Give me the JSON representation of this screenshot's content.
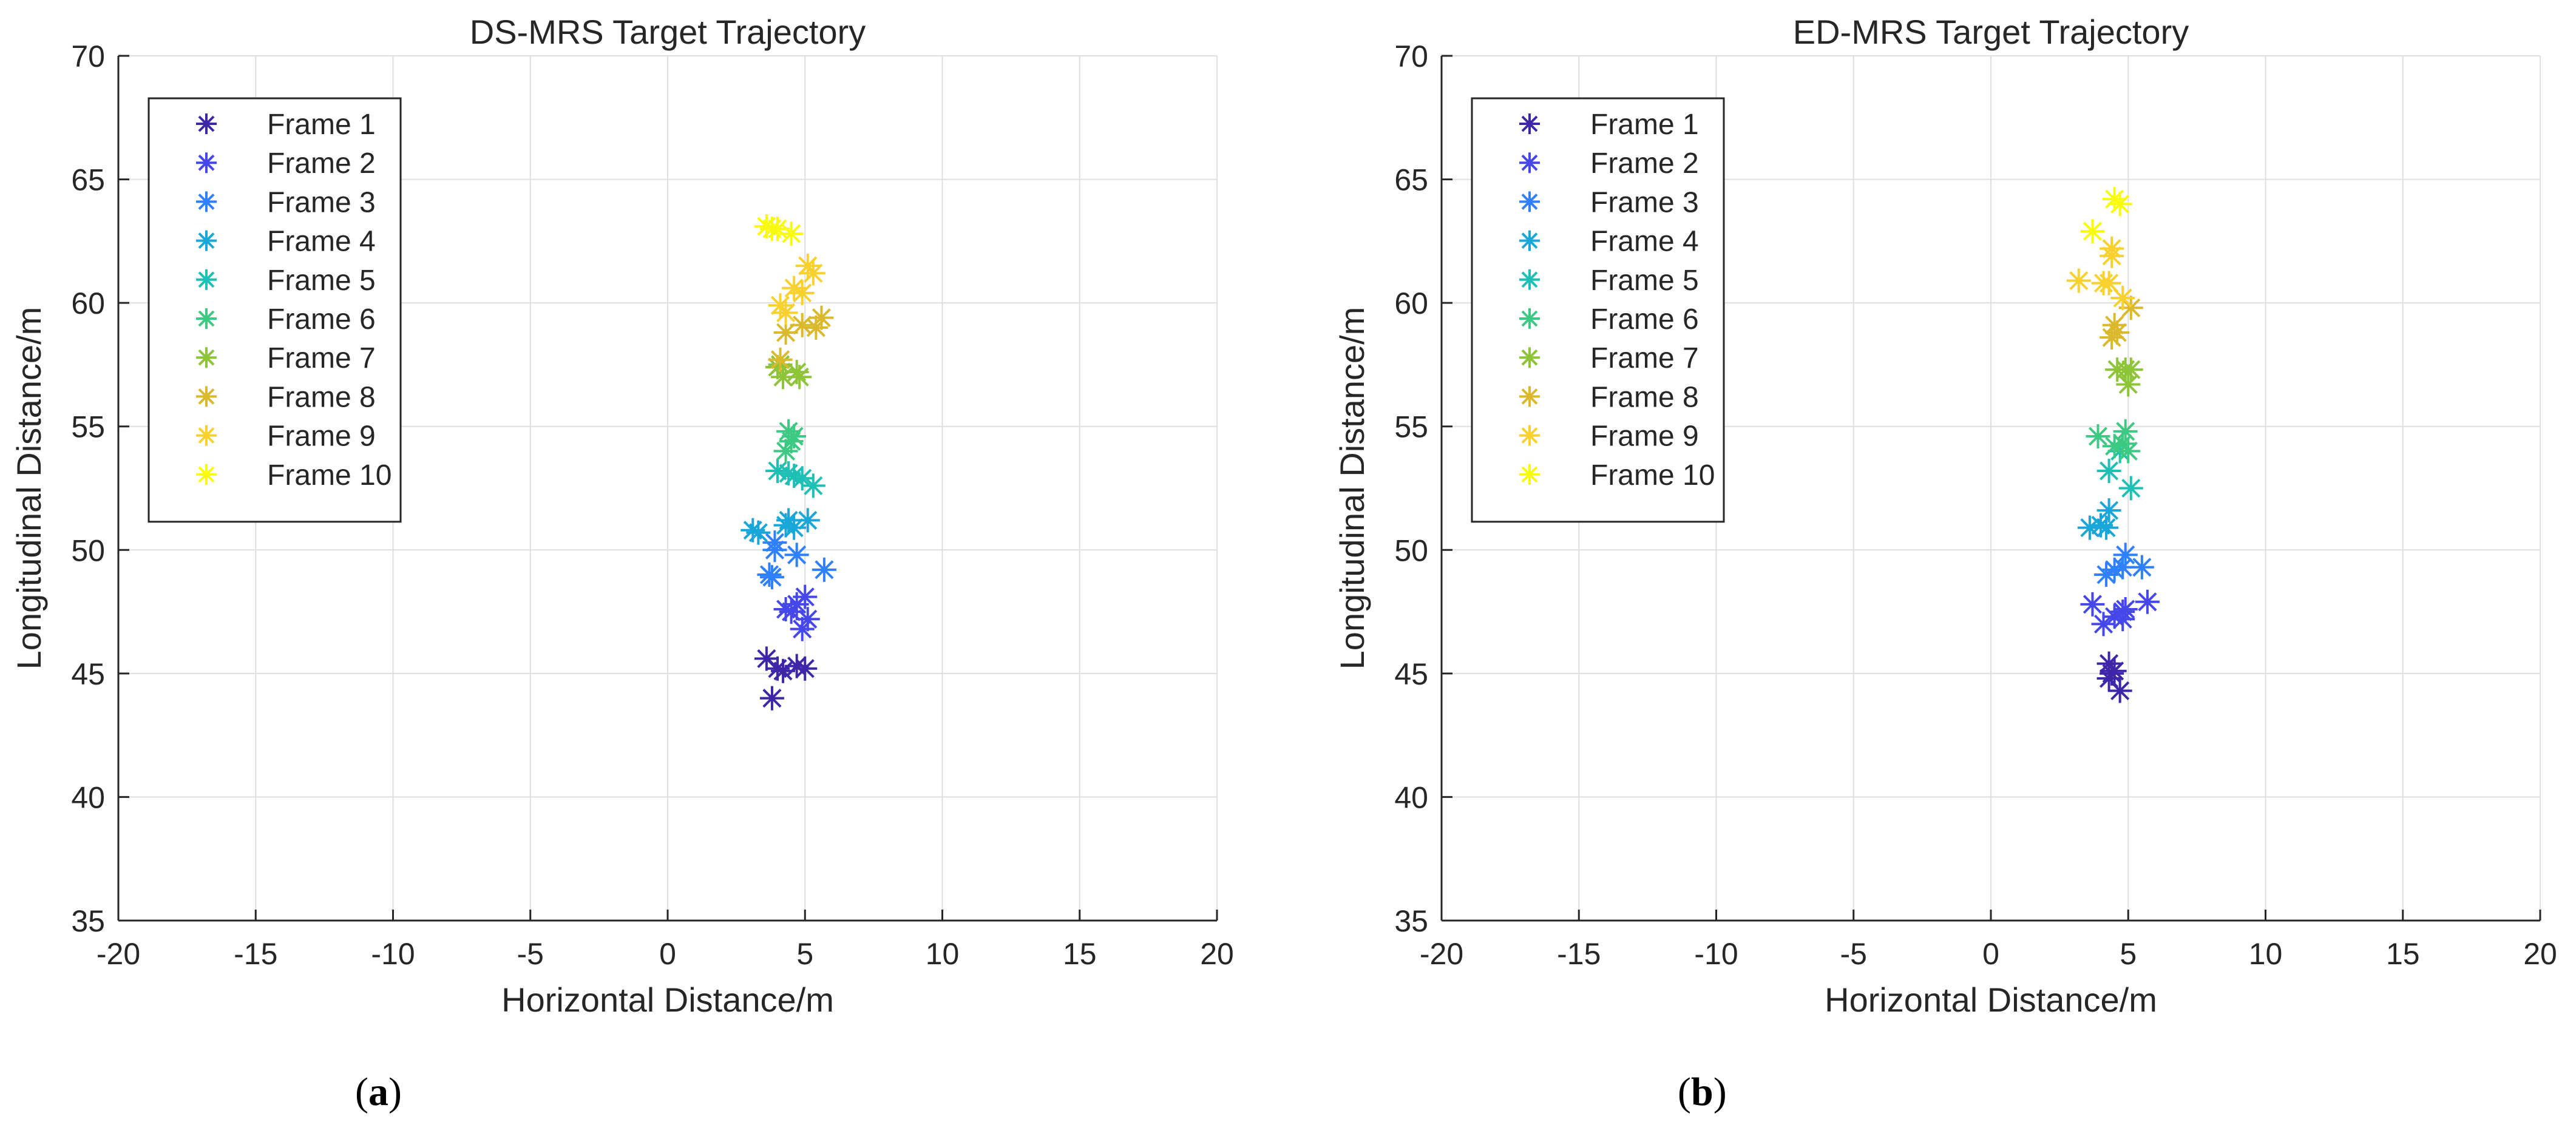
{
  "figure": {
    "captions": [
      "(a)",
      "(b)"
    ],
    "caption_letters": [
      "a",
      "b"
    ]
  },
  "chart_data": [
    {
      "type": "scatter",
      "title": "DS-MRS Target Trajectory",
      "xlabel": "Horizontal Distance/m",
      "ylabel": "Longitudinal Distance/m",
      "xlim": [
        -20,
        20
      ],
      "ylim": [
        35,
        70
      ],
      "xticks": [
        -20,
        -15,
        -10,
        -5,
        0,
        5,
        10,
        15,
        20
      ],
      "yticks": [
        35,
        40,
        45,
        50,
        55,
        60,
        65,
        70
      ],
      "xtick_labels": [
        "-20",
        "-15",
        "-10",
        "-5",
        "0",
        "5",
        "10",
        "15",
        "20"
      ],
      "ytick_labels": [
        "35",
        "40",
        "45",
        "50",
        "55",
        "60",
        "65",
        "70"
      ],
      "grid": true,
      "marker": "*",
      "legend_position": "top-left",
      "series": [
        {
          "name": "Frame 1",
          "color": "#3e26a8",
          "points": [
            [
              3.6,
              45.6
            ],
            [
              4.0,
              45.2
            ],
            [
              4.2,
              45.1
            ],
            [
              4.7,
              45.3
            ],
            [
              5.0,
              45.2
            ],
            [
              3.8,
              44.0
            ]
          ]
        },
        {
          "name": "Frame 2",
          "color": "#4547eb",
          "points": [
            [
              4.3,
              47.6
            ],
            [
              4.7,
              47.8
            ],
            [
              5.0,
              48.1
            ],
            [
              4.5,
              47.5
            ],
            [
              5.1,
              47.2
            ],
            [
              4.9,
              46.8
            ]
          ]
        },
        {
          "name": "Frame 3",
          "color": "#2f80fe",
          "points": [
            [
              3.9,
              50.3
            ],
            [
              3.9,
              50.0
            ],
            [
              4.7,
              49.8
            ],
            [
              5.7,
              49.2
            ],
            [
              3.7,
              49.0
            ],
            [
              3.8,
              48.9
            ]
          ]
        },
        {
          "name": "Frame 4",
          "color": "#19a6d8",
          "points": [
            [
              3.1,
              50.8
            ],
            [
              3.3,
              50.7
            ],
            [
              4.3,
              51.0
            ],
            [
              4.4,
              51.2
            ],
            [
              5.1,
              51.2
            ],
            [
              4.6,
              50.9
            ]
          ]
        },
        {
          "name": "Frame 5",
          "color": "#1ebfb5",
          "points": [
            [
              4.0,
              53.2
            ],
            [
              4.6,
              53.0
            ],
            [
              4.9,
              52.9
            ],
            [
              5.3,
              52.6
            ],
            [
              4.4,
              53.1
            ]
          ]
        },
        {
          "name": "Frame 6",
          "color": "#3ec983",
          "points": [
            [
              4.4,
              54.8
            ],
            [
              4.6,
              54.6
            ],
            [
              4.3,
              54.0
            ],
            [
              4.5,
              54.4
            ]
          ]
        },
        {
          "name": "Frame 7",
          "color": "#8ec538",
          "points": [
            [
              4.0,
              57.4
            ],
            [
              4.2,
              57.0
            ],
            [
              4.7,
              57.2
            ],
            [
              4.8,
              57.0
            ],
            [
              4.1,
              57.5
            ]
          ]
        },
        {
          "name": "Frame 8",
          "color": "#dbb92d",
          "points": [
            [
              4.1,
              57.7
            ],
            [
              4.3,
              58.8
            ],
            [
              5.4,
              59.0
            ],
            [
              5.6,
              59.4
            ],
            [
              4.9,
              59.1
            ]
          ]
        },
        {
          "name": "Frame 9",
          "color": "#f9d12f",
          "points": [
            [
              4.1,
              59.9
            ],
            [
              4.3,
              59.6
            ],
            [
              4.6,
              60.6
            ],
            [
              5.3,
              61.2
            ],
            [
              5.1,
              61.5
            ],
            [
              4.9,
              60.4
            ]
          ]
        },
        {
          "name": "Frame 10",
          "color": "#f9fb0e",
          "points": [
            [
              3.6,
              63.1
            ],
            [
              3.8,
              63.0
            ],
            [
              4.0,
              63.0
            ],
            [
              4.5,
              62.8
            ]
          ]
        }
      ]
    },
    {
      "type": "scatter",
      "title": "ED-MRS Target Trajectory",
      "xlabel": "Horizontal Distance/m",
      "ylabel": "Longitudinal Distance/m",
      "xlim": [
        -20,
        20
      ],
      "ylim": [
        35,
        70
      ],
      "xticks": [
        -20,
        -15,
        -10,
        -5,
        0,
        5,
        10,
        15,
        20
      ],
      "yticks": [
        35,
        40,
        45,
        50,
        55,
        60,
        65,
        70
      ],
      "xtick_labels": [
        "-20",
        "-15",
        "-10",
        "-5",
        "0",
        "5",
        "10",
        "15",
        "20"
      ],
      "ytick_labels": [
        "35",
        "40",
        "45",
        "50",
        "55",
        "60",
        "65",
        "70"
      ],
      "grid": true,
      "marker": "*",
      "legend_position": "top-left",
      "series": [
        {
          "name": "Frame 1",
          "color": "#3e26a8",
          "points": [
            [
              4.3,
              45.4
            ],
            [
              4.4,
              45.0
            ],
            [
              4.3,
              44.8
            ],
            [
              4.7,
              44.3
            ],
            [
              4.5,
              45.1
            ]
          ]
        },
        {
          "name": "Frame 2",
          "color": "#4547eb",
          "points": [
            [
              3.7,
              47.8
            ],
            [
              4.1,
              47.0
            ],
            [
              4.5,
              47.3
            ],
            [
              4.8,
              47.5
            ],
            [
              4.9,
              47.6
            ],
            [
              4.8,
              47.2
            ],
            [
              5.7,
              47.9
            ]
          ]
        },
        {
          "name": "Frame 3",
          "color": "#2f80fe",
          "points": [
            [
              4.2,
              49.0
            ],
            [
              4.5,
              49.2
            ],
            [
              4.8,
              49.3
            ],
            [
              4.9,
              49.8
            ],
            [
              5.5,
              49.3
            ]
          ]
        },
        {
          "name": "Frame 4",
          "color": "#19a6d8",
          "points": [
            [
              3.6,
              50.9
            ],
            [
              4.0,
              51.0
            ],
            [
              4.3,
              51.6
            ],
            [
              4.2,
              50.9
            ]
          ]
        },
        {
          "name": "Frame 5",
          "color": "#1ebfb5",
          "points": [
            [
              4.3,
              53.2
            ],
            [
              5.1,
              52.5
            ],
            [
              4.7,
              54.0
            ]
          ]
        },
        {
          "name": "Frame 6",
          "color": "#3ec983",
          "points": [
            [
              3.9,
              54.6
            ],
            [
              4.5,
              54.2
            ],
            [
              4.8,
              54.3
            ],
            [
              4.9,
              54.8
            ],
            [
              5.0,
              54.0
            ]
          ]
        },
        {
          "name": "Frame 7",
          "color": "#8ec538",
          "points": [
            [
              4.6,
              57.3
            ],
            [
              4.9,
              57.3
            ],
            [
              5.0,
              56.7
            ],
            [
              5.1,
              57.3
            ]
          ]
        },
        {
          "name": "Frame 8",
          "color": "#dbb92d",
          "points": [
            [
              4.4,
              58.6
            ],
            [
              4.5,
              59.1
            ],
            [
              4.6,
              58.8
            ],
            [
              5.1,
              59.8
            ]
          ]
        },
        {
          "name": "Frame 9",
          "color": "#f9d12f",
          "points": [
            [
              3.2,
              60.9
            ],
            [
              4.1,
              60.8
            ],
            [
              4.3,
              60.8
            ],
            [
              4.8,
              60.2
            ],
            [
              4.4,
              62.2
            ],
            [
              4.4,
              61.9
            ]
          ]
        },
        {
          "name": "Frame 10",
          "color": "#f9fb0e",
          "points": [
            [
              3.7,
              62.9
            ],
            [
              4.5,
              64.2
            ],
            [
              4.7,
              64.0
            ]
          ]
        }
      ]
    }
  ]
}
